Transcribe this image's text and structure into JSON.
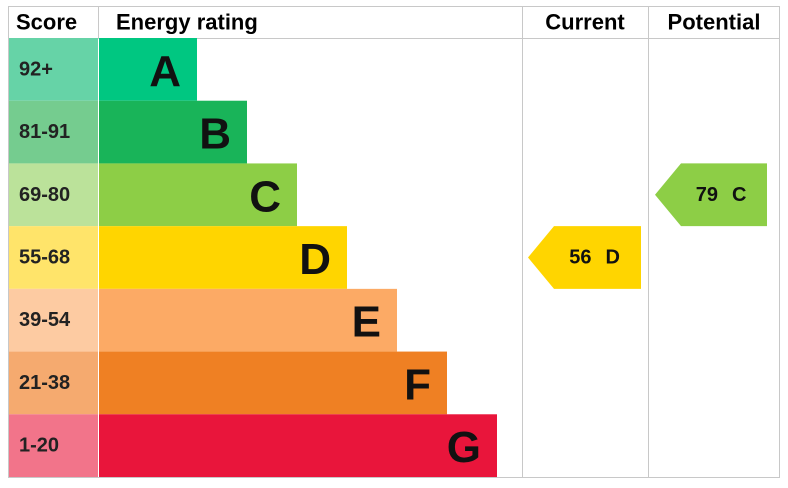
{
  "header": {
    "score": "Score",
    "rating": "Energy rating",
    "current": "Current",
    "potential": "Potential"
  },
  "bands": [
    {
      "score": "92+",
      "letter": "A",
      "color": "#00c781",
      "score_color": "#66d3a7"
    },
    {
      "score": "81-91",
      "letter": "B",
      "color": "#19b459",
      "score_color": "#75cc8f"
    },
    {
      "score": "69-80",
      "letter": "C",
      "color": "#8dce46",
      "score_color": "#bbe29a"
    },
    {
      "score": "55-68",
      "letter": "D",
      "color": "#ffd500",
      "score_color": "#ffe46a"
    },
    {
      "score": "39-54",
      "letter": "E",
      "color": "#fcaa65",
      "score_color": "#fdcba2"
    },
    {
      "score": "21-38",
      "letter": "F",
      "color": "#ef8023",
      "score_color": "#f5aa6f"
    },
    {
      "score": "1-20",
      "letter": "G",
      "color": "#e9153b",
      "score_color": "#f2748a"
    }
  ],
  "current": {
    "value": 56,
    "letter": "D"
  },
  "potential": {
    "value": 79,
    "letter": "C"
  }
}
